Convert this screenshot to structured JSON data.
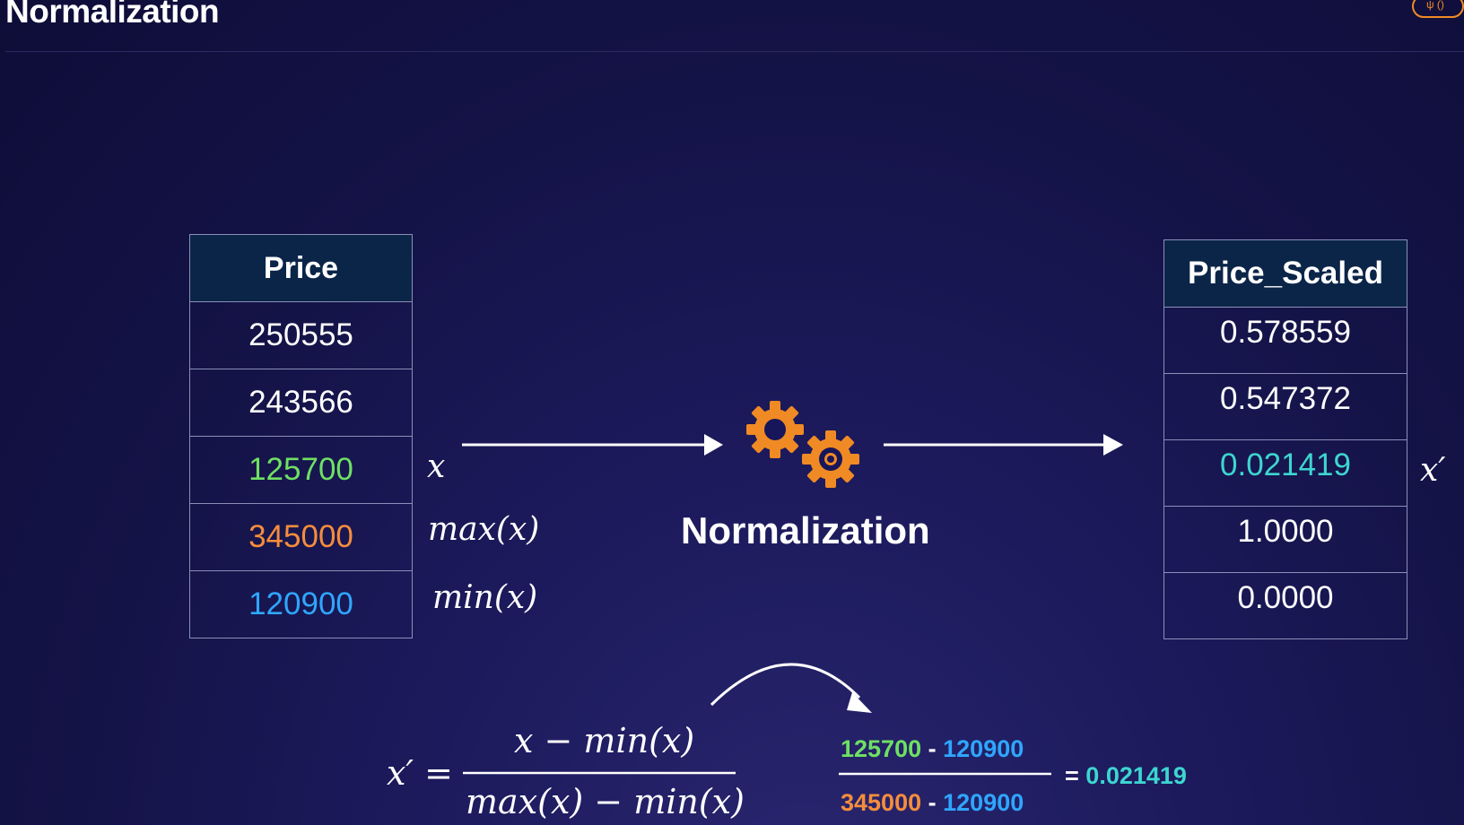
{
  "slide": {
    "title": "Normalization"
  },
  "input_table": {
    "header": "Price",
    "rows": [
      {
        "value": "250555",
        "color": "#ffffff"
      },
      {
        "value": "243566",
        "color": "#ffffff"
      },
      {
        "value": "125700",
        "color": "#6fe063"
      },
      {
        "value": "345000",
        "color": "#f58d3c"
      },
      {
        "value": "120900",
        "color": "#2fa6ff"
      }
    ]
  },
  "annotations": {
    "x": "x",
    "max": "max(x)",
    "min": "min(x)",
    "x_prime": "x′"
  },
  "process": {
    "label": "Normalization",
    "icon": "gears-icon",
    "accent": "#f08a24"
  },
  "output_table": {
    "header": "Price_Scaled",
    "rows": [
      {
        "value": "0.578559",
        "color": "#ffffff"
      },
      {
        "value": "0.547372",
        "color": "#ffffff"
      },
      {
        "value": "0.021419",
        "color": "#3dd6d0"
      },
      {
        "value": "1.0000",
        "color": "#ffffff"
      },
      {
        "value": "0.0000",
        "color": "#ffffff"
      }
    ]
  },
  "formula": {
    "lhs": "x′ =",
    "numerator": "x − min(x)",
    "denominator": "max(x) − min(x)"
  },
  "calculation": {
    "num_a": "125700",
    "num_sep": "-",
    "num_b": "120900",
    "den_a": "345000",
    "den_sep": "-",
    "den_b": "120900",
    "equals": "=",
    "result": "0.021419"
  }
}
